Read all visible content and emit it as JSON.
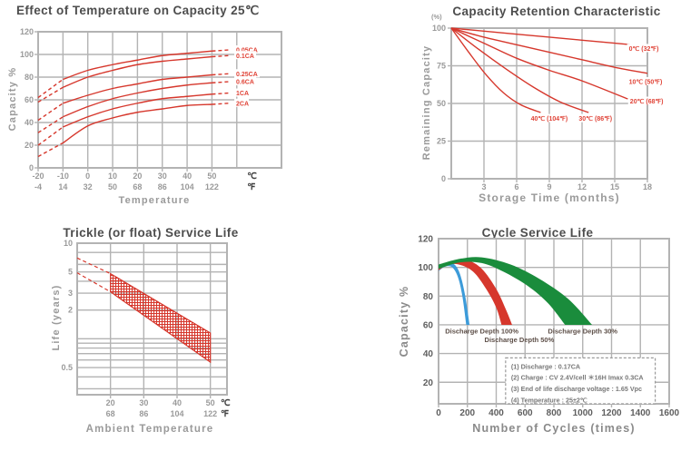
{
  "chart_data": [
    {
      "id": "effect-of-temperature-on-capacity",
      "type": "line",
      "title": "Effect of Temperature on Capacity  25℃",
      "xlabel": "Temperature",
      "ylabel": "Capacity %",
      "x_axis_c": {
        "unit": "℃",
        "ticks": [
          -20,
          -10,
          0,
          10,
          20,
          30,
          40,
          50
        ]
      },
      "x_axis_f": {
        "unit": "℉",
        "ticks": [
          -4,
          14,
          32,
          50,
          68,
          86,
          104,
          122
        ]
      },
      "yticks": [
        0,
        20,
        40,
        60,
        80,
        100,
        120
      ],
      "xlim": [
        -20,
        78
      ],
      "ylim": [
        0,
        120
      ],
      "grid": true,
      "line_color": "#d6372c",
      "series": [
        {
          "name": "0.05CA",
          "x": [
            -20,
            -10,
            0,
            10,
            20,
            30,
            40,
            50,
            57
          ],
          "y": [
            62,
            78,
            86,
            91,
            95,
            99,
            101,
            103,
            104
          ]
        },
        {
          "name": "0.1CA",
          "x": [
            -20,
            -10,
            0,
            10,
            20,
            30,
            40,
            50,
            57
          ],
          "y": [
            58,
            71,
            80,
            86,
            91,
            94,
            96,
            98,
            99
          ]
        },
        {
          "name": "0.25CA",
          "x": [
            -20,
            -10,
            0,
            10,
            20,
            30,
            40,
            50,
            57
          ],
          "y": [
            42,
            57,
            64,
            70,
            74,
            78,
            80,
            82,
            83
          ]
        },
        {
          "name": "0.6CA",
          "x": [
            -20,
            -10,
            0,
            10,
            20,
            30,
            40,
            50,
            57
          ],
          "y": [
            31,
            45,
            54,
            61,
            66,
            70,
            73,
            75,
            76
          ]
        },
        {
          "name": "1CA",
          "x": [
            -20,
            -10,
            0,
            10,
            20,
            30,
            40,
            50,
            57
          ],
          "y": [
            20,
            36,
            45,
            52,
            57,
            61,
            63,
            65,
            66
          ]
        },
        {
          "name": "2CA",
          "x": [
            -20,
            -10,
            0,
            10,
            20,
            30,
            40,
            50,
            57
          ],
          "y": [
            10,
            22,
            37,
            44,
            49,
            52,
            55,
            56,
            57
          ]
        }
      ]
    },
    {
      "id": "capacity-retention-characteristic",
      "type": "line",
      "title": "Capacity Retention Characteristic",
      "xlabel": "Storage Time (months)",
      "ylabel": "Remaining Capacity",
      "y_unit": "(%)",
      "xticks": [
        3,
        6,
        9,
        12,
        15,
        18
      ],
      "yticks": [
        0,
        25,
        50,
        75,
        100
      ],
      "xlim": [
        0,
        18
      ],
      "ylim": [
        0,
        100
      ],
      "grid": true,
      "line_color": "#d6372c",
      "series": [
        {
          "name": "0℃ (32℉)",
          "x": [
            0,
            3,
            6,
            9,
            12,
            15,
            18
          ],
          "y": [
            100,
            98,
            96,
            94,
            92,
            90,
            88
          ],
          "label_at": [
            16.3,
            86.5
          ]
        },
        {
          "name": "10℃ (50℉)",
          "x": [
            0,
            3,
            6,
            9,
            12,
            15,
            18
          ],
          "y": [
            100,
            94,
            89,
            84,
            79,
            74,
            70
          ],
          "label_at": [
            16.3,
            64.5
          ]
        },
        {
          "name": "20℃ (68℉)",
          "x": [
            0,
            3,
            6,
            9,
            12,
            16.2
          ],
          "y": [
            100,
            90,
            80,
            72,
            65,
            53
          ],
          "label_at": [
            16.4,
            51.5
          ]
        },
        {
          "name": "30℃ (86℉)",
          "x": [
            0,
            2.5,
            5,
            7.5,
            10,
            12.6
          ],
          "y": [
            100,
            86,
            73,
            61,
            51,
            44
          ],
          "label_at": [
            11.7,
            40
          ]
        },
        {
          "name": "40℃ (104℉)",
          "x": [
            0,
            1.6,
            3.2,
            4.8,
            6.4,
            8.2
          ],
          "y": [
            100,
            84,
            69,
            57,
            49,
            44
          ],
          "label_at": [
            7.3,
            40
          ]
        }
      ]
    },
    {
      "id": "trickle-float-service-life",
      "type": "band-log",
      "title": "Trickle (or float) Service Life",
      "xlabel": "Ambient Temperature",
      "ylabel": "Life (years)",
      "x_axis_c": {
        "unit": "℃",
        "ticks": [
          20,
          30,
          40,
          50
        ]
      },
      "x_axis_f": {
        "unit": "℉",
        "ticks": [
          68,
          86,
          104,
          122
        ]
      },
      "ytick_labels": [
        10,
        5,
        3,
        2,
        0.5
      ],
      "y_gridlines": [
        8,
        6,
        5,
        4,
        3,
        2,
        1,
        0.9,
        0.8,
        0.7,
        0.6,
        0.5,
        0.4,
        0.3
      ],
      "xlim": [
        10,
        55
      ],
      "ylim_log": [
        0.26,
        10
      ],
      "band_color": "#d6372c",
      "band": {
        "upper": [
          [
            10,
            7.0
          ],
          [
            20,
            4.8
          ],
          [
            50,
            1.15
          ]
        ],
        "lower": [
          [
            10,
            4.9
          ],
          [
            20,
            3.1
          ],
          [
            50,
            0.57
          ]
        ],
        "solid_from_x": 20
      }
    },
    {
      "id": "cycle-service-life",
      "type": "band",
      "title": "Cycle Service Life",
      "xlabel": "Number of Cycles (times)",
      "ylabel": "Capacity %",
      "xticks": [
        0,
        200,
        400,
        600,
        800,
        1000,
        1200,
        1400,
        1600
      ],
      "yticks": [
        20,
        40,
        60,
        80,
        100,
        120
      ],
      "xlim": [
        0,
        1600
      ],
      "ylim": [
        5,
        120
      ],
      "grid": true,
      "series": [
        {
          "name": "Discharge Depth 100%",
          "color": "#3d9bd9",
          "label_at": [
            300,
            56
          ],
          "outer": [
            [
              0,
              100
            ],
            [
              60,
              102.5
            ],
            [
              110,
              102
            ],
            [
              150,
              95
            ],
            [
              185,
              80
            ],
            [
              215,
              60
            ]
          ],
          "inner": [
            [
              192,
              60
            ],
            [
              165,
              80
            ],
            [
              135,
              93
            ],
            [
              95,
              100
            ],
            [
              45,
              100.5
            ],
            [
              0,
              97.5
            ]
          ]
        },
        {
          "name": "Discharge Depth 50%",
          "color": "#d6372c",
          "label_at": [
            560,
            50
          ],
          "outer": [
            [
              0,
              101
            ],
            [
              100,
              104.5
            ],
            [
              200,
              105
            ],
            [
              300,
              99
            ],
            [
              400,
              85
            ],
            [
              470,
              70
            ],
            [
              510,
              60
            ]
          ],
          "inner": [
            [
              437,
              60
            ],
            [
              400,
              72
            ],
            [
              330,
              85
            ],
            [
              240,
              97
            ],
            [
              140,
              102
            ],
            [
              60,
              101.5
            ],
            [
              0,
              98
            ]
          ]
        },
        {
          "name": "Discharge Depth 30%",
          "color": "#1a8c3c",
          "label_at": [
            1000,
            56
          ],
          "outer": [
            [
              0,
              102
            ],
            [
              150,
              106
            ],
            [
              300,
              107
            ],
            [
              500,
              102
            ],
            [
              700,
              92
            ],
            [
              900,
              78
            ],
            [
              1065,
              60
            ]
          ],
          "inner": [
            [
              878,
              60
            ],
            [
              760,
              75
            ],
            [
              620,
              87
            ],
            [
              450,
              97
            ],
            [
              300,
              103
            ],
            [
              150,
              103.5
            ],
            [
              0,
              99
            ]
          ]
        }
      ],
      "notes": [
        "(1) Discharge : 0.17CA",
        "(2) Charge : CV 2.4V/cell ＊16H Imax 0.3CA",
        "(3) End of life discharge voltage : 1.65 Vpc",
        "(4) Temperature : 25±2℃"
      ]
    }
  ]
}
